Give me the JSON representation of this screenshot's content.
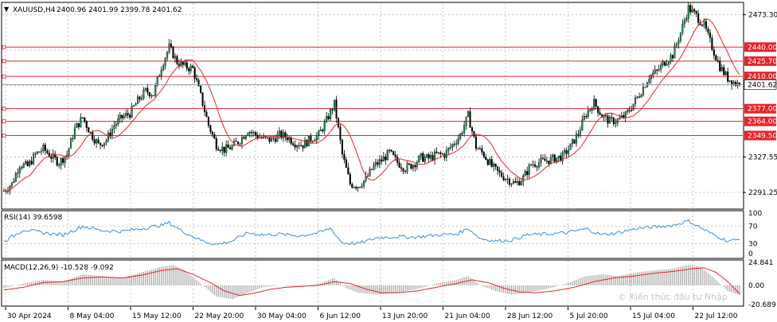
{
  "chart_data": [
    {
      "type": "candlestick",
      "title": "XAUUSD,H4",
      "ohlc_label": "2400.96 2401.99 2399.78 2401.62",
      "last_price": 2401.62,
      "ylim": [
        2275,
        2485
      ],
      "price_ticks": [
        2473.3,
        2327.55,
        2291.25
      ],
      "grid": true,
      "x_labels": [
        "30 Apr 2024",
        "8 May 04:00",
        "15 May 12:00",
        "22 May 20:00",
        "30 May 04:00",
        "6 Jun 12:00",
        "13 Jun 20:00",
        "21 Jun 04:00",
        "28 Jun 12:00",
        "5 Jul 20:00",
        "15 Jul 04:00",
        "22 Jul 12:00"
      ],
      "horizontal_levels": [
        2440.0,
        2425.7,
        2410.0,
        2377.0,
        2364.0,
        2349.5
      ],
      "price_keypoints": [
        [
          0,
          2293
        ],
        [
          4,
          2300
        ],
        [
          8,
          2320
        ],
        [
          12,
          2318
        ],
        [
          16,
          2330
        ],
        [
          20,
          2336
        ],
        [
          24,
          2328
        ],
        [
          28,
          2322
        ],
        [
          32,
          2330
        ],
        [
          36,
          2356
        ],
        [
          40,
          2368
        ],
        [
          44,
          2352
        ],
        [
          48,
          2340
        ],
        [
          52,
          2345
        ],
        [
          56,
          2360
        ],
        [
          60,
          2368
        ],
        [
          64,
          2372
        ],
        [
          68,
          2385
        ],
        [
          72,
          2395
        ],
        [
          76,
          2392
        ],
        [
          80,
          2420
        ],
        [
          84,
          2440
        ],
        [
          88,
          2425
        ],
        [
          92,
          2420
        ],
        [
          96,
          2418
        ],
        [
          100,
          2390
        ],
        [
          104,
          2360
        ],
        [
          108,
          2340
        ],
        [
          112,
          2335
        ],
        [
          116,
          2338
        ],
        [
          120,
          2345
        ],
        [
          124,
          2355
        ],
        [
          128,
          2350
        ],
        [
          132,
          2346
        ],
        [
          136,
          2345
        ],
        [
          140,
          2350
        ],
        [
          144,
          2348
        ],
        [
          148,
          2342
        ],
        [
          152,
          2340
        ],
        [
          156,
          2346
        ],
        [
          160,
          2350
        ],
        [
          164,
          2365
        ],
        [
          168,
          2382
        ],
        [
          172,
          2330
        ],
        [
          176,
          2300
        ],
        [
          180,
          2298
        ],
        [
          184,
          2305
        ],
        [
          188,
          2318
        ],
        [
          192,
          2324
        ],
        [
          196,
          2332
        ],
        [
          200,
          2322
        ],
        [
          204,
          2316
        ],
        [
          208,
          2320
        ],
        [
          212,
          2327
        ],
        [
          216,
          2326
        ],
        [
          220,
          2330
        ],
        [
          224,
          2330
        ],
        [
          228,
          2340
        ],
        [
          232,
          2350
        ],
        [
          236,
          2370
        ],
        [
          240,
          2338
        ],
        [
          244,
          2330
        ],
        [
          248,
          2318
        ],
        [
          252,
          2310
        ],
        [
          256,
          2305
        ],
        [
          260,
          2300
        ],
        [
          264,
          2306
        ],
        [
          268,
          2320
        ],
        [
          272,
          2322
        ],
        [
          276,
          2324
        ],
        [
          280,
          2326
        ],
        [
          284,
          2328
        ],
        [
          288,
          2338
        ],
        [
          292,
          2352
        ],
        [
          296,
          2372
        ],
        [
          300,
          2383
        ],
        [
          304,
          2370
        ],
        [
          308,
          2364
        ],
        [
          312,
          2365
        ],
        [
          316,
          2370
        ],
        [
          320,
          2382
        ],
        [
          324,
          2395
        ],
        [
          328,
          2410
        ],
        [
          332,
          2415
        ],
        [
          336,
          2425
        ],
        [
          340,
          2432
        ],
        [
          344,
          2455
        ],
        [
          348,
          2480
        ],
        [
          352,
          2472
        ],
        [
          356,
          2462
        ],
        [
          360,
          2440
        ],
        [
          364,
          2420
        ],
        [
          368,
          2408
        ],
        [
          372,
          2403
        ],
        [
          374,
          2401.62
        ]
      ]
    },
    {
      "type": "line",
      "title": "RSI(14) 39.6598",
      "ylim": [
        0,
        100
      ],
      "y_ticks": [
        100,
        70,
        30,
        0
      ],
      "keypoints": [
        [
          0,
          35
        ],
        [
          10,
          62
        ],
        [
          20,
          55
        ],
        [
          30,
          50
        ],
        [
          40,
          70
        ],
        [
          50,
          60
        ],
        [
          60,
          58
        ],
        [
          70,
          65
        ],
        [
          80,
          72
        ],
        [
          84,
          78
        ],
        [
          90,
          60
        ],
        [
          100,
          38
        ],
        [
          108,
          28
        ],
        [
          116,
          36
        ],
        [
          124,
          55
        ],
        [
          132,
          50
        ],
        [
          140,
          52
        ],
        [
          150,
          48
        ],
        [
          160,
          55
        ],
        [
          166,
          65
        ],
        [
          172,
          32
        ],
        [
          180,
          30
        ],
        [
          190,
          44
        ],
        [
          200,
          46
        ],
        [
          210,
          45
        ],
        [
          220,
          50
        ],
        [
          230,
          52
        ],
        [
          236,
          65
        ],
        [
          242,
          42
        ],
        [
          250,
          36
        ],
        [
          258,
          38
        ],
        [
          266,
          50
        ],
        [
          276,
          52
        ],
        [
          286,
          55
        ],
        [
          296,
          64
        ],
        [
          304,
          50
        ],
        [
          312,
          55
        ],
        [
          322,
          65
        ],
        [
          330,
          68
        ],
        [
          340,
          72
        ],
        [
          348,
          82
        ],
        [
          352,
          72
        ],
        [
          360,
          52
        ],
        [
          368,
          36
        ],
        [
          374,
          39.66
        ]
      ]
    },
    {
      "type": "bar",
      "title": "MACD(12,26,9) -10.528 -9.092",
      "ylim": [
        -20.689,
        24.841
      ],
      "y_ticks": [
        24.841,
        0.0,
        -20.689
      ],
      "histogram_keypoints": [
        [
          0,
          -3
        ],
        [
          10,
          2
        ],
        [
          20,
          6
        ],
        [
          30,
          4
        ],
        [
          40,
          12
        ],
        [
          50,
          10
        ],
        [
          60,
          8
        ],
        [
          70,
          14
        ],
        [
          80,
          20
        ],
        [
          86,
          22
        ],
        [
          92,
          16
        ],
        [
          100,
          2
        ],
        [
          108,
          -12
        ],
        [
          116,
          -15
        ],
        [
          124,
          -8
        ],
        [
          132,
          -2
        ],
        [
          140,
          0
        ],
        [
          150,
          -2
        ],
        [
          160,
          2
        ],
        [
          168,
          8
        ],
        [
          174,
          -3
        ],
        [
          180,
          -8
        ],
        [
          190,
          -10
        ],
        [
          200,
          -8
        ],
        [
          210,
          -4
        ],
        [
          220,
          2
        ],
        [
          230,
          6
        ],
        [
          236,
          10
        ],
        [
          242,
          0
        ],
        [
          250,
          -6
        ],
        [
          258,
          -10
        ],
        [
          266,
          -8
        ],
        [
          276,
          -4
        ],
        [
          286,
          2
        ],
        [
          296,
          10
        ],
        [
          304,
          12
        ],
        [
          312,
          10
        ],
        [
          322,
          14
        ],
        [
          330,
          16
        ],
        [
          340,
          18
        ],
        [
          348,
          22
        ],
        [
          354,
          20
        ],
        [
          360,
          10
        ],
        [
          368,
          -6
        ],
        [
          374,
          -10.528
        ]
      ],
      "signal_keypoints": [
        [
          0,
          -5
        ],
        [
          10,
          -2
        ],
        [
          20,
          3
        ],
        [
          30,
          4
        ],
        [
          40,
          8
        ],
        [
          50,
          9
        ],
        [
          60,
          8
        ],
        [
          70,
          11
        ],
        [
          80,
          16
        ],
        [
          88,
          18
        ],
        [
          96,
          12
        ],
        [
          104,
          4
        ],
        [
          112,
          -6
        ],
        [
          120,
          -11
        ],
        [
          128,
          -8
        ],
        [
          136,
          -4
        ],
        [
          144,
          -2
        ],
        [
          152,
          -1
        ],
        [
          160,
          0
        ],
        [
          168,
          4
        ],
        [
          176,
          2
        ],
        [
          184,
          -4
        ],
        [
          192,
          -8
        ],
        [
          200,
          -8
        ],
        [
          210,
          -6
        ],
        [
          220,
          -2
        ],
        [
          230,
          2
        ],
        [
          238,
          6
        ],
        [
          246,
          3
        ],
        [
          254,
          -3
        ],
        [
          262,
          -7
        ],
        [
          270,
          -8
        ],
        [
          280,
          -6
        ],
        [
          290,
          -2
        ],
        [
          300,
          4
        ],
        [
          310,
          8
        ],
        [
          320,
          10
        ],
        [
          330,
          13
        ],
        [
          340,
          15
        ],
        [
          350,
          18
        ],
        [
          356,
          19
        ],
        [
          362,
          14
        ],
        [
          368,
          4
        ],
        [
          374,
          -9.092
        ]
      ]
    }
  ],
  "watermark": "© Kiến thức đầu tư Nhập"
}
